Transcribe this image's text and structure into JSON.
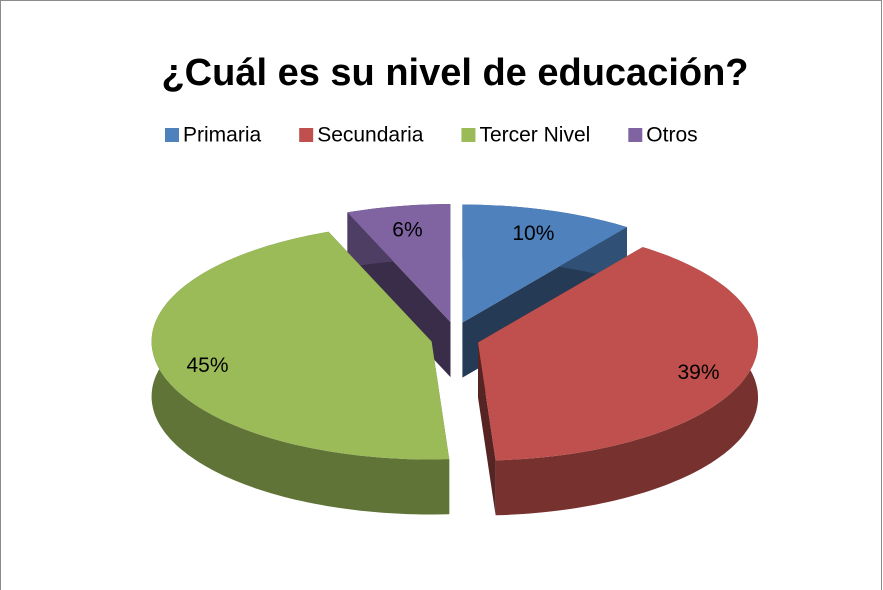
{
  "chart_data": {
    "type": "pie",
    "title": "¿Cuál es su nivel de educación?",
    "categories": [
      "Primaria",
      "Secundaria",
      "Tercer Nivel",
      "Otros"
    ],
    "values": [
      10,
      39,
      45,
      6
    ],
    "value_labels": [
      "10%",
      "39%",
      "45%",
      "6%"
    ],
    "colors": [
      "#4f81bd",
      "#c0504d",
      "#9bbb59",
      "#8064a2"
    ],
    "legend": "top"
  }
}
